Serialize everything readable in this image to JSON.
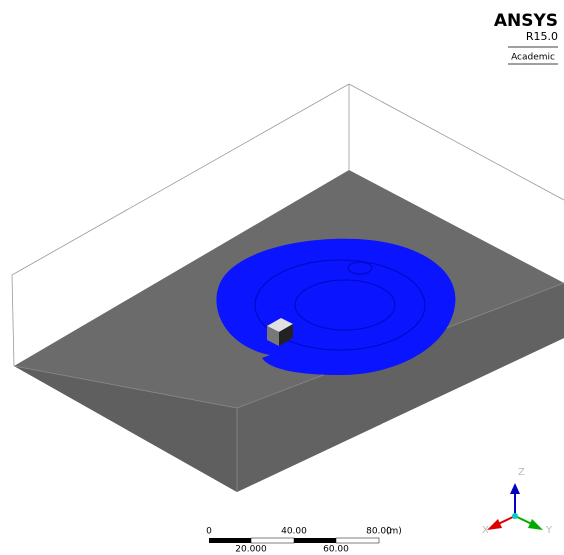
{
  "logo": {
    "title": "ANSYS",
    "version": "R15.0",
    "edition": "Academic"
  },
  "scale_bar": {
    "top_labels": [
      "0",
      "40.00",
      "80.00"
    ],
    "unit": "(m)",
    "bottom_labels": [
      "20.000",
      "60.00"
    ]
  },
  "triad": {
    "z": "Z",
    "x": "X",
    "y": "Y"
  }
}
